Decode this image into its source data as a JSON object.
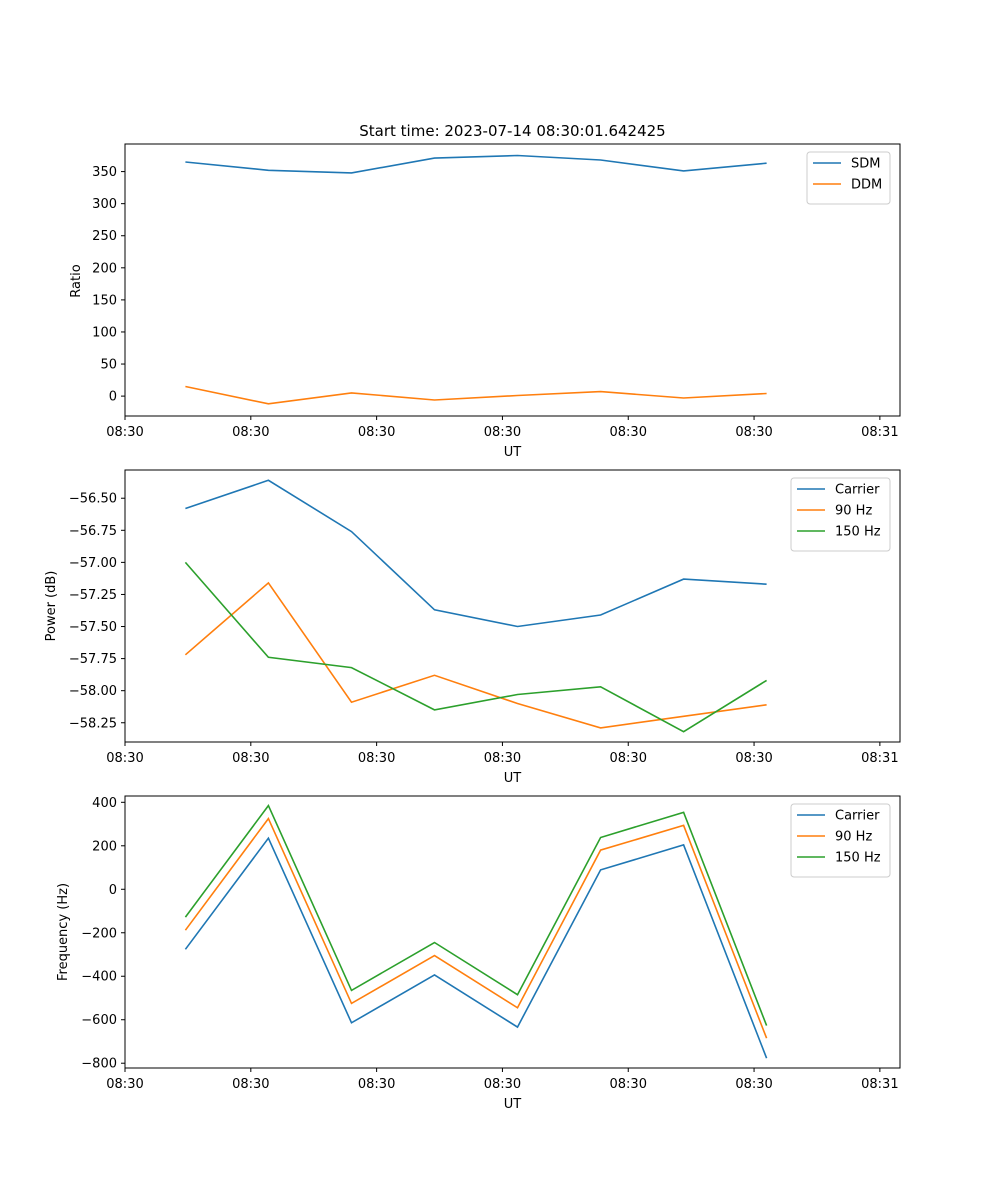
{
  "chart_data": [
    {
      "type": "line",
      "title": "Start time: 2023-07-14 08:30:01.642425",
      "xlabel": "UT",
      "ylabel": "Ratio",
      "x_tick_labels": [
        "08:30",
        "08:30",
        "08:30",
        "08:30",
        "08:30",
        "08:30",
        "08:31"
      ],
      "xlim": [
        0,
        6.16
      ],
      "ylim": [
        -31,
        393
      ],
      "y_ticks": [
        0,
        50,
        100,
        150,
        200,
        250,
        300,
        350
      ],
      "y_tick_labels": [
        "0",
        "50",
        "100",
        "150",
        "200",
        "250",
        "300",
        "350"
      ],
      "x": [
        0.48,
        1.14,
        1.8,
        2.46,
        3.12,
        3.78,
        4.44,
        5.1
      ],
      "legend": "top-right",
      "series": [
        {
          "name": "SDM",
          "color": "#1f77b4",
          "values": [
            365,
            352,
            348,
            371,
            375,
            368,
            351,
            363
          ]
        },
        {
          "name": "DDM",
          "color": "#ff7f0e",
          "values": [
            15,
            -12,
            5,
            -6,
            1,
            7,
            -3,
            4
          ]
        }
      ]
    },
    {
      "type": "line",
      "title": "",
      "xlabel": "UT",
      "ylabel": "Power (dB)",
      "x_tick_labels": [
        "08:30",
        "08:30",
        "08:30",
        "08:30",
        "08:30",
        "08:30",
        "08:31"
      ],
      "xlim": [
        0,
        6.16
      ],
      "ylim": [
        -58.4,
        -56.28
      ],
      "y_ticks": [
        -58.25,
        -58.0,
        -57.75,
        -57.5,
        -57.25,
        -57.0,
        -56.75,
        -56.5
      ],
      "y_tick_labels": [
        "−58.25",
        "−58.00",
        "−57.75",
        "−57.50",
        "−57.25",
        "−57.00",
        "−56.75",
        "−56.50"
      ],
      "x": [
        0.48,
        1.14,
        1.8,
        2.46,
        3.12,
        3.78,
        4.44,
        5.1
      ],
      "legend": "top-right",
      "series": [
        {
          "name": "Carrier",
          "color": "#1f77b4",
          "values": [
            -56.58,
            -56.36,
            -56.76,
            -57.37,
            -57.5,
            -57.41,
            -57.13,
            -57.17
          ]
        },
        {
          "name": "90 Hz",
          "color": "#ff7f0e",
          "values": [
            -57.72,
            -57.16,
            -58.09,
            -57.88,
            -58.1,
            -58.29,
            -58.2,
            -58.11
          ]
        },
        {
          "name": "150 Hz",
          "color": "#2ca02c",
          "values": [
            -57.0,
            -57.74,
            -57.82,
            -58.15,
            -58.03,
            -57.97,
            -58.32,
            -57.92
          ]
        }
      ]
    },
    {
      "type": "line",
      "title": "",
      "xlabel": "UT",
      "ylabel": "Frequency (Hz)",
      "x_tick_labels": [
        "08:30",
        "08:30",
        "08:30",
        "08:30",
        "08:30",
        "08:30",
        "08:31"
      ],
      "xlim": [
        0,
        6.16
      ],
      "ylim": [
        -822,
        429
      ],
      "y_ticks": [
        -800,
        -600,
        -400,
        -200,
        0,
        200,
        400
      ],
      "y_tick_labels": [
        "−800",
        "−600",
        "−400",
        "−200",
        "0",
        "200",
        "400"
      ],
      "x": [
        0.48,
        1.14,
        1.8,
        2.46,
        3.12,
        3.78,
        4.44,
        5.1
      ],
      "legend": "top-right",
      "series": [
        {
          "name": "Carrier",
          "color": "#1f77b4",
          "values": [
            -276,
            235,
            -614,
            -394,
            -634,
            89,
            204,
            -777
          ]
        },
        {
          "name": "90 Hz",
          "color": "#ff7f0e",
          "values": [
            -188,
            325,
            -525,
            -305,
            -545,
            180,
            294,
            -685
          ]
        },
        {
          "name": "150 Hz",
          "color": "#2ca02c",
          "values": [
            -128,
            385,
            -465,
            -245,
            -485,
            238,
            354,
            -627
          ]
        }
      ]
    }
  ]
}
